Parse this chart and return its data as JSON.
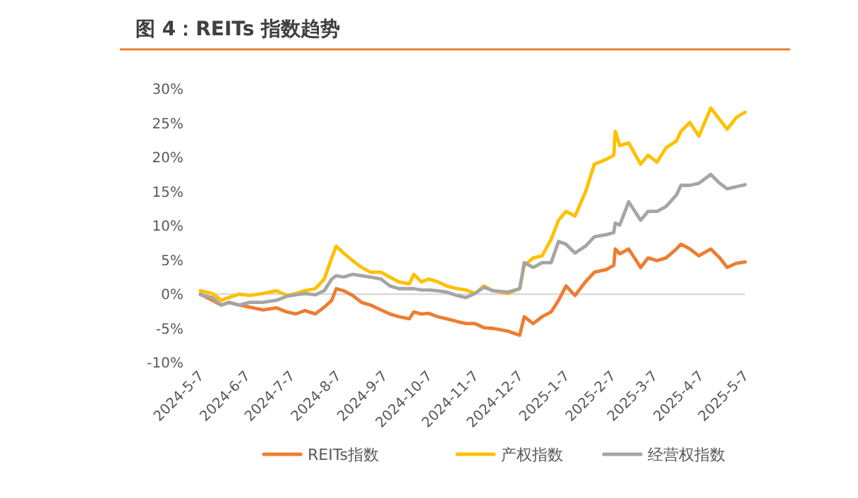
{
  "chart_data": {
    "type": "line",
    "title": "图 4：REITs 指数趋势",
    "x": [
      "2024-05-07",
      "2024-05-15",
      "2024-05-21",
      "2024-05-26",
      "2024-06-02",
      "2024-06-09",
      "2024-06-18",
      "2024-06-27",
      "2024-07-04",
      "2024-07-10",
      "2024-07-16",
      "2024-07-23",
      "2024-07-29",
      "2024-08-03",
      "2024-08-06",
      "2024-08-11",
      "2024-08-17",
      "2024-08-23",
      "2024-08-29",
      "2024-09-05",
      "2024-09-11",
      "2024-09-17",
      "2024-09-24",
      "2024-09-27",
      "2024-10-02",
      "2024-10-07",
      "2024-10-13",
      "2024-10-19",
      "2024-10-26",
      "2024-11-01",
      "2024-11-07",
      "2024-11-13",
      "2024-11-19",
      "2024-11-29",
      "2024-12-07",
      "2024-12-10",
      "2024-12-16",
      "2024-12-22",
      "2024-12-28",
      "2025-01-02",
      "2025-01-07",
      "2025-01-13",
      "2025-01-20",
      "2025-01-26",
      "2025-02-03",
      "2025-02-08",
      "2025-02-09",
      "2025-02-12",
      "2025-02-18",
      "2025-02-26",
      "2025-03-03",
      "2025-03-09",
      "2025-03-15",
      "2025-03-22",
      "2025-03-25",
      "2025-03-31",
      "2025-04-06",
      "2025-04-14",
      "2025-04-20",
      "2025-04-25",
      "2025-05-01",
      "2025-05-07"
    ],
    "series": [
      {
        "name": "REITs指数",
        "color": "#ed7d31",
        "values": [
          0,
          -0.9,
          -1.6,
          -1.2,
          -1.6,
          -1.9,
          -2.3,
          -2,
          -2.6,
          -2.9,
          -2.4,
          -2.9,
          -1.9,
          -0.9,
          0.8,
          0.5,
          -0.2,
          -1.2,
          -1.6,
          -2.3,
          -2.9,
          -3.3,
          -3.6,
          -2.6,
          -2.9,
          -2.8,
          -3.3,
          -3.6,
          -4,
          -4.3,
          -4.3,
          -4.9,
          -5,
          -5.4,
          -6,
          -3.3,
          -4.3,
          -3.3,
          -2.6,
          -0.9,
          1.2,
          -0.2,
          1.8,
          3.2,
          3.6,
          4.2,
          6.6,
          5.9,
          6.6,
          3.9,
          5.3,
          4.9,
          5.3,
          6.6,
          7.3,
          6.6,
          5.6,
          6.6,
          5.3,
          3.9,
          4.5,
          4.7
        ]
      },
      {
        "name": "产权指数",
        "color": "#ffc000",
        "values": [
          0.5,
          0.1,
          -0.9,
          -0.5,
          0,
          -0.2,
          0.1,
          0.5,
          -0.2,
          0.1,
          0.5,
          0.8,
          2.2,
          5.3,
          7,
          6,
          4.9,
          3.9,
          3.2,
          3.2,
          2.5,
          1.8,
          1.5,
          2.9,
          1.8,
          2.2,
          1.8,
          1.2,
          0.8,
          0.6,
          0.1,
          1.2,
          0.5,
          0.1,
          0.8,
          4.2,
          5.3,
          5.6,
          8,
          10.8,
          12.1,
          11.4,
          14.9,
          19,
          19.7,
          20.3,
          23.8,
          21.7,
          22.1,
          19,
          20.3,
          19.3,
          21.4,
          22.4,
          23.8,
          25.1,
          23.1,
          27.2,
          25.5,
          24.1,
          25.8,
          26.6
        ]
      },
      {
        "name": "经营权指数",
        "color": "#a5a5a5",
        "values": [
          -0.1,
          -0.5,
          -1.6,
          -1.2,
          -1.6,
          -1.2,
          -1.2,
          -0.9,
          -0.3,
          -0.1,
          0.1,
          -0.1,
          0.5,
          2.2,
          2.7,
          2.5,
          2.9,
          2.7,
          2.5,
          2.2,
          1.2,
          0.8,
          0.8,
          0.8,
          0.6,
          0.6,
          0.5,
          0.3,
          -0.2,
          -0.5,
          0.1,
          1,
          0.5,
          0.3,
          0.8,
          4.6,
          3.9,
          4.6,
          4.6,
          7.7,
          7.3,
          6,
          7,
          8.4,
          8.7,
          9,
          10.4,
          10.1,
          13.5,
          10.8,
          12.1,
          12.1,
          12.8,
          14.5,
          15.9,
          15.9,
          16.2,
          17.5,
          16.2,
          15.4,
          15.7,
          16
        ]
      }
    ],
    "xlim": [
      "2024-05-07",
      "2025-05-07"
    ],
    "xticks": [
      {
        "value": "2024-05-07",
        "label": "2024-5-7"
      },
      {
        "value": "2024-06-07",
        "label": "2024-6-7"
      },
      {
        "value": "2024-07-07",
        "label": "2024-7-7"
      },
      {
        "value": "2024-08-07",
        "label": "2024-8-7"
      },
      {
        "value": "2024-09-07",
        "label": "2024-9-7"
      },
      {
        "value": "2024-10-07",
        "label": "2024-10-7"
      },
      {
        "value": "2024-11-07",
        "label": "2024-11-7"
      },
      {
        "value": "2024-12-07",
        "label": "2024-12-7"
      },
      {
        "value": "2025-01-07",
        "label": "2025-1-7"
      },
      {
        "value": "2025-02-07",
        "label": "2025-2-7"
      },
      {
        "value": "2025-03-07",
        "label": "2025-3-7"
      },
      {
        "value": "2025-04-07",
        "label": "2025-4-7"
      },
      {
        "value": "2025-05-07",
        "label": "2025-5-7"
      }
    ],
    "ylim": [
      -10,
      30
    ],
    "yticks": [
      {
        "value": -10,
        "label": "-10%"
      },
      {
        "value": -5,
        "label": "-5%"
      },
      {
        "value": 0,
        "label": "0%"
      },
      {
        "value": 5,
        "label": "5%"
      },
      {
        "value": 10,
        "label": "10%"
      },
      {
        "value": 15,
        "label": "15%"
      },
      {
        "value": 20,
        "label": "20%"
      },
      {
        "value": 25,
        "label": "25%"
      },
      {
        "value": 30,
        "label": "30%"
      }
    ],
    "ref_lines": [
      {
        "axis": "y",
        "value": 0,
        "color": "#d9d9d9"
      }
    ],
    "legend": "bottom",
    "marker": "none",
    "line_style": "solid"
  }
}
